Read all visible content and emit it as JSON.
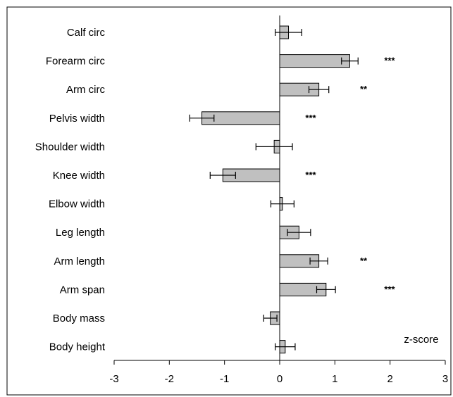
{
  "chart_data": {
    "type": "bar",
    "orientation": "horizontal",
    "categories": [
      "Calf circ",
      "Forearm circ",
      "Arm circ",
      "Pelvis width",
      "Shoulder width",
      "Knee width",
      "Elbow width",
      "Leg length",
      "Arm length",
      "Arm span",
      "Body mass",
      "Body height"
    ],
    "values": [
      0.16,
      1.27,
      0.71,
      -1.41,
      -0.1,
      -1.03,
      0.05,
      0.35,
      0.71,
      0.84,
      -0.17,
      0.1
    ],
    "errors": [
      0.24,
      0.15,
      0.18,
      0.22,
      0.33,
      0.23,
      0.21,
      0.21,
      0.16,
      0.17,
      0.12,
      0.18
    ],
    "significance": [
      "",
      "***",
      "**",
      "***",
      "",
      "***",
      "",
      "",
      "**",
      "***",
      "",
      ""
    ],
    "xlabel": "z-score",
    "ylabel": "",
    "xlim": [
      -3,
      3
    ],
    "xticks": [
      "-3",
      "-2",
      "-1",
      "0",
      "1",
      "2",
      "3"
    ],
    "grid": false,
    "bar_color": "#c0c0c0",
    "line_color": "#000000"
  }
}
